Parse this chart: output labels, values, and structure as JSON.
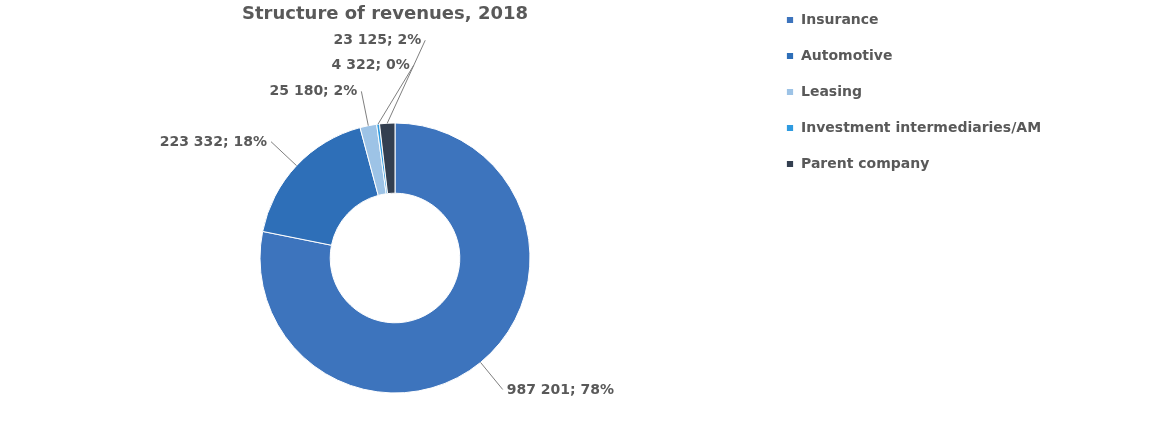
{
  "chart_data": {
    "type": "donut",
    "title": "Structure of revenues, 2018",
    "categories": [
      "Insurance",
      "Automotive",
      "Leasing",
      "Investment intermediaries/AM",
      "Parent company"
    ],
    "values": [
      987201,
      223332,
      25180,
      4322,
      23125
    ],
    "value_labels": [
      "987 201; 78%",
      "223 332; 18%",
      "25 180; 2%",
      "4 322; 0%",
      "23 125; 2%"
    ],
    "colors": [
      "#3d74bd",
      "#2e6fb8",
      "#9dc3e6",
      "#2f9be0",
      "#333f50"
    ],
    "legend": "right"
  }
}
